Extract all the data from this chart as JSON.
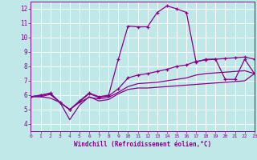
{
  "xlabel": "Windchill (Refroidissement éolien,°C)",
  "bg_color": "#c0e8e8",
  "line_color": "#880088",
  "grid_color": "#ffffff",
  "xlim": [
    0,
    23
  ],
  "ylim": [
    3.5,
    12.5
  ],
  "xticks": [
    0,
    1,
    2,
    3,
    4,
    5,
    6,
    7,
    8,
    9,
    10,
    11,
    12,
    13,
    14,
    15,
    16,
    17,
    18,
    19,
    20,
    21,
    22,
    23
  ],
  "yticks": [
    4,
    5,
    6,
    7,
    8,
    9,
    10,
    11,
    12
  ],
  "series": [
    {
      "y": [
        5.9,
        5.9,
        5.8,
        5.5,
        4.3,
        5.3,
        5.9,
        5.6,
        5.7,
        6.1,
        6.4,
        6.5,
        6.5,
        6.55,
        6.6,
        6.65,
        6.7,
        6.75,
        6.8,
        6.85,
        6.9,
        6.95,
        7.0,
        7.5
      ],
      "marker": false
    },
    {
      "y": [
        5.9,
        5.9,
        6.05,
        5.5,
        5.0,
        5.5,
        5.85,
        5.75,
        5.85,
        6.2,
        6.6,
        6.8,
        6.85,
        6.9,
        7.0,
        7.1,
        7.2,
        7.4,
        7.5,
        7.55,
        7.6,
        7.65,
        7.7,
        7.5
      ],
      "marker": false
    },
    {
      "y": [
        5.9,
        6.0,
        6.1,
        5.5,
        5.0,
        5.55,
        6.1,
        5.85,
        5.95,
        6.45,
        7.2,
        7.4,
        7.5,
        7.65,
        7.8,
        8.0,
        8.1,
        8.35,
        8.45,
        8.5,
        8.55,
        8.6,
        8.65,
        8.5
      ],
      "marker": true
    },
    {
      "y": [
        5.9,
        6.0,
        6.15,
        5.5,
        5.0,
        5.6,
        6.15,
        5.9,
        6.0,
        8.5,
        10.8,
        10.75,
        10.75,
        11.75,
        12.2,
        12.0,
        11.75,
        8.3,
        8.5,
        8.5,
        7.1,
        7.1,
        8.5,
        7.5
      ],
      "marker": true
    }
  ]
}
